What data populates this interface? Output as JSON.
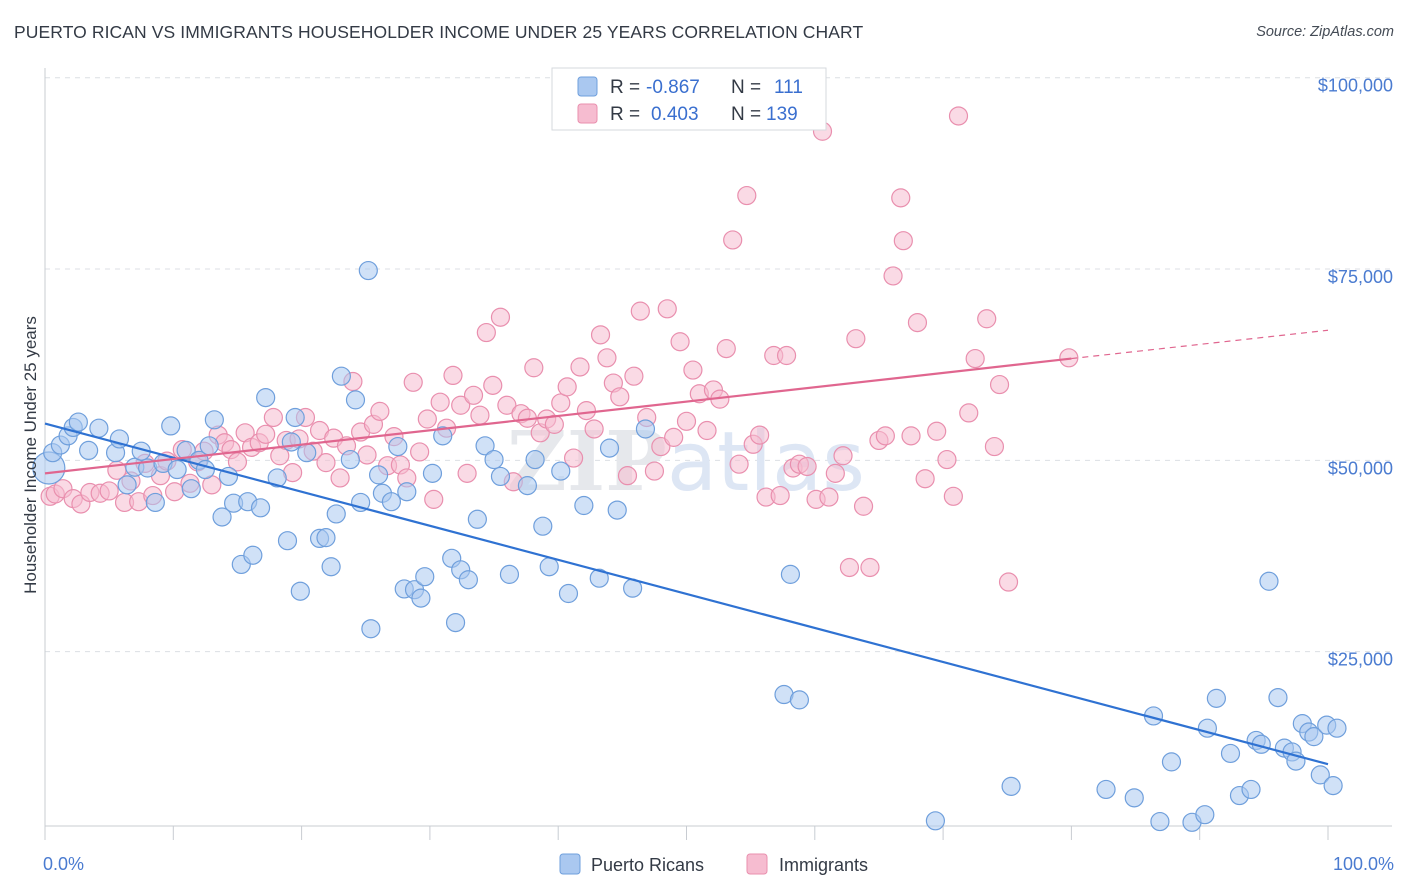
{
  "title": "PUERTO RICAN VS IMMIGRANTS HOUSEHOLDER INCOME UNDER 25 YEARS CORRELATION CHART",
  "source": "Source: ZipAtlas.com",
  "watermark": "ZIPatlas",
  "colors": {
    "blue_fill": "#aac8f0",
    "blue_stroke": "#6f9fdc",
    "blue_line": "#2f72d2",
    "pink_fill": "#f6bcd0",
    "pink_stroke": "#e98fae",
    "pink_line": "#e0668f",
    "tick": "#4a7bd0",
    "grid": "#dcdfe4"
  },
  "legend_top": {
    "rows": [
      {
        "r_label": "R =",
        "r_value": "-0.867",
        "n_label": "N =",
        "n_value": "111",
        "series": "blue"
      },
      {
        "r_label": "R =",
        "r_value": "0.403",
        "n_label": "N =",
        "n_value": "139",
        "series": "pink"
      }
    ]
  },
  "legend_bottom": [
    {
      "label": "Puerto Ricans",
      "series": "blue"
    },
    {
      "label": "Immigrants",
      "series": "pink"
    }
  ],
  "chart_data": {
    "type": "scatter",
    "title": "PUERTO RICAN VS IMMIGRANTS HOUSEHOLDER INCOME UNDER 25 YEARS CORRELATION CHART",
    "xlabel": "",
    "ylabel": "Householder Income Under 25 years",
    "xlim": [
      0,
      100
    ],
    "ylim": [
      0,
      105000
    ],
    "x_tick_labels": [
      "0.0%",
      "100.0%"
    ],
    "y_ticks": [
      25000,
      50000,
      75000,
      100000
    ],
    "y_tick_labels": [
      "$25,000",
      "$50,000",
      "$75,000",
      "$100,000"
    ],
    "grid": true,
    "series": [
      {
        "name": "Puerto Ricans",
        "color": "blue",
        "trend": {
          "x": [
            0,
            100
          ],
          "y": [
            54800,
            10300
          ],
          "dashed_from": null
        },
        "points": [
          [
            0.3,
            49000
          ],
          [
            0.6,
            51000
          ],
          [
            1.2,
            52000
          ],
          [
            1.8,
            53200
          ],
          [
            2.2,
            54300
          ],
          [
            2.6,
            55000
          ],
          [
            3.4,
            51300
          ],
          [
            4.2,
            54200
          ],
          [
            5.5,
            51000
          ],
          [
            5.8,
            52800
          ],
          [
            6.4,
            46800
          ],
          [
            7.0,
            49100
          ],
          [
            7.5,
            51200
          ],
          [
            8.0,
            49000
          ],
          [
            8.6,
            44500
          ],
          [
            9.2,
            49600
          ],
          [
            9.8,
            54500
          ],
          [
            10.3,
            48800
          ],
          [
            11.0,
            51300
          ],
          [
            11.4,
            46300
          ],
          [
            12.0,
            50000
          ],
          [
            12.5,
            48800
          ],
          [
            12.8,
            51900
          ],
          [
            13.2,
            55300
          ],
          [
            13.8,
            42600
          ],
          [
            14.3,
            47900
          ],
          [
            14.7,
            44400
          ],
          [
            15.3,
            36400
          ],
          [
            15.8,
            44600
          ],
          [
            16.2,
            37600
          ],
          [
            16.8,
            43800
          ],
          [
            17.2,
            58200
          ],
          [
            18.1,
            47700
          ],
          [
            18.9,
            39500
          ],
          [
            19.2,
            52400
          ],
          [
            19.5,
            55600
          ],
          [
            19.9,
            32900
          ],
          [
            20.4,
            51000
          ],
          [
            21.4,
            39800
          ],
          [
            21.9,
            39900
          ],
          [
            22.3,
            36100
          ],
          [
            22.7,
            43000
          ],
          [
            23.1,
            61000
          ],
          [
            23.8,
            50100
          ],
          [
            24.2,
            57900
          ],
          [
            24.6,
            44500
          ],
          [
            25.2,
            74800
          ],
          [
            25.4,
            28000
          ],
          [
            26.0,
            48100
          ],
          [
            26.3,
            45700
          ],
          [
            27.0,
            44600
          ],
          [
            27.5,
            51800
          ],
          [
            28.0,
            33200
          ],
          [
            28.2,
            45900
          ],
          [
            28.8,
            33100
          ],
          [
            29.3,
            32000
          ],
          [
            29.6,
            34800
          ],
          [
            30.2,
            48300
          ],
          [
            31.0,
            53200
          ],
          [
            31.7,
            37200
          ],
          [
            32.0,
            28800
          ],
          [
            32.4,
            35700
          ],
          [
            33.0,
            34400
          ],
          [
            33.7,
            42300
          ],
          [
            34.3,
            51900
          ],
          [
            35.0,
            50100
          ],
          [
            35.5,
            47900
          ],
          [
            36.2,
            35100
          ],
          [
            37.6,
            46700
          ],
          [
            38.2,
            50100
          ],
          [
            38.8,
            41400
          ],
          [
            39.3,
            36100
          ],
          [
            40.2,
            48600
          ],
          [
            40.8,
            32600
          ],
          [
            42.0,
            44100
          ],
          [
            43.2,
            34600
          ],
          [
            44.0,
            51600
          ],
          [
            44.6,
            43500
          ],
          [
            45.8,
            33300
          ],
          [
            46.8,
            54100
          ],
          [
            57.6,
            19400
          ],
          [
            58.1,
            35100
          ],
          [
            58.8,
            18700
          ],
          [
            69.4,
            2900
          ],
          [
            75.3,
            7400
          ],
          [
            82.7,
            7000
          ],
          [
            84.9,
            5900
          ],
          [
            86.4,
            16600
          ],
          [
            86.9,
            2800
          ],
          [
            87.8,
            10600
          ],
          [
            89.4,
            2700
          ],
          [
            90.4,
            3700
          ],
          [
            90.6,
            15000
          ],
          [
            91.3,
            18900
          ],
          [
            92.4,
            11700
          ],
          [
            93.1,
            6200
          ],
          [
            94.0,
            7000
          ],
          [
            94.4,
            13400
          ],
          [
            94.8,
            12900
          ],
          [
            95.4,
            34200
          ],
          [
            96.1,
            19000
          ],
          [
            96.6,
            12400
          ],
          [
            97.2,
            11900
          ],
          [
            97.5,
            10700
          ],
          [
            98.0,
            15600
          ],
          [
            98.5,
            14500
          ],
          [
            98.9,
            13900
          ],
          [
            99.4,
            8900
          ],
          [
            99.9,
            15400
          ],
          [
            100.4,
            7500
          ],
          [
            100.7,
            15000
          ]
        ]
      },
      {
        "name": "Immigrants",
        "color": "pink",
        "trend": {
          "x": [
            0,
            80
          ],
          "y": [
            48300,
            63300
          ],
          "dashed_to": [
            100,
            67000
          ]
        },
        "points": [
          [
            0.4,
            45300
          ],
          [
            0.8,
            45600
          ],
          [
            1.4,
            46300
          ],
          [
            2.2,
            45000
          ],
          [
            2.8,
            44300
          ],
          [
            3.5,
            45800
          ],
          [
            4.3,
            45700
          ],
          [
            5.0,
            46000
          ],
          [
            5.6,
            48700
          ],
          [
            6.2,
            44500
          ],
          [
            6.7,
            47300
          ],
          [
            7.3,
            44600
          ],
          [
            7.8,
            49600
          ],
          [
            8.4,
            45400
          ],
          [
            9.0,
            48000
          ],
          [
            9.5,
            49900
          ],
          [
            10.1,
            45900
          ],
          [
            10.7,
            51400
          ],
          [
            11.3,
            47000
          ],
          [
            11.9,
            49800
          ],
          [
            12.4,
            51200
          ],
          [
            13.0,
            46800
          ],
          [
            13.5,
            53300
          ],
          [
            14.0,
            52300
          ],
          [
            14.5,
            51400
          ],
          [
            15.0,
            49800
          ],
          [
            15.6,
            53600
          ],
          [
            16.1,
            51700
          ],
          [
            16.7,
            52300
          ],
          [
            17.2,
            53400
          ],
          [
            17.8,
            55600
          ],
          [
            18.3,
            50600
          ],
          [
            18.8,
            52600
          ],
          [
            19.3,
            48400
          ],
          [
            19.8,
            52800
          ],
          [
            20.3,
            55600
          ],
          [
            20.9,
            51200
          ],
          [
            21.4,
            53900
          ],
          [
            21.9,
            49700
          ],
          [
            22.5,
            52900
          ],
          [
            23.0,
            47700
          ],
          [
            23.5,
            51900
          ],
          [
            24.0,
            60300
          ],
          [
            24.6,
            53700
          ],
          [
            25.1,
            50700
          ],
          [
            25.6,
            54700
          ],
          [
            26.1,
            56400
          ],
          [
            26.7,
            49300
          ],
          [
            27.2,
            53100
          ],
          [
            27.7,
            49400
          ],
          [
            28.2,
            47700
          ],
          [
            28.7,
            60200
          ],
          [
            29.2,
            51100
          ],
          [
            29.8,
            55400
          ],
          [
            30.3,
            44900
          ],
          [
            30.8,
            57600
          ],
          [
            31.3,
            54200
          ],
          [
            31.8,
            61100
          ],
          [
            32.4,
            57200
          ],
          [
            32.9,
            48300
          ],
          [
            33.4,
            58500
          ],
          [
            33.9,
            55900
          ],
          [
            34.4,
            66700
          ],
          [
            34.9,
            59800
          ],
          [
            35.5,
            68700
          ],
          [
            36.0,
            57200
          ],
          [
            36.5,
            47200
          ],
          [
            37.1,
            56100
          ],
          [
            37.6,
            55500
          ],
          [
            38.1,
            62100
          ],
          [
            38.6,
            53600
          ],
          [
            39.1,
            55400
          ],
          [
            39.7,
            54700
          ],
          [
            40.2,
            57500
          ],
          [
            40.7,
            59600
          ],
          [
            41.2,
            50300
          ],
          [
            41.7,
            62200
          ],
          [
            42.2,
            56500
          ],
          [
            42.8,
            54100
          ],
          [
            43.3,
            66400
          ],
          [
            43.8,
            63400
          ],
          [
            44.3,
            60100
          ],
          [
            44.8,
            58300
          ],
          [
            45.4,
            48000
          ],
          [
            45.9,
            61000
          ],
          [
            46.4,
            69500
          ],
          [
            46.9,
            55600
          ],
          [
            47.5,
            48600
          ],
          [
            48.0,
            51800
          ],
          [
            48.5,
            69800
          ],
          [
            49.0,
            53000
          ],
          [
            49.5,
            65500
          ],
          [
            50.0,
            55100
          ],
          [
            50.5,
            61800
          ],
          [
            51.0,
            58700
          ],
          [
            51.6,
            53900
          ],
          [
            52.1,
            59200
          ],
          [
            52.6,
            58000
          ],
          [
            53.1,
            64600
          ],
          [
            53.6,
            78800
          ],
          [
            54.1,
            49500
          ],
          [
            54.7,
            84600
          ],
          [
            55.2,
            52100
          ],
          [
            55.7,
            53300
          ],
          [
            56.2,
            45200
          ],
          [
            56.8,
            63700
          ],
          [
            57.3,
            45400
          ],
          [
            57.8,
            63700
          ],
          [
            58.3,
            49000
          ],
          [
            58.8,
            49500
          ],
          [
            59.4,
            49200
          ],
          [
            60.1,
            44900
          ],
          [
            60.6,
            93000
          ],
          [
            61.1,
            45200
          ],
          [
            61.6,
            48300
          ],
          [
            62.2,
            50600
          ],
          [
            62.7,
            36000
          ],
          [
            63.2,
            65900
          ],
          [
            63.8,
            44000
          ],
          [
            64.3,
            36000
          ],
          [
            65.0,
            52600
          ],
          [
            65.5,
            53200
          ],
          [
            66.1,
            74100
          ],
          [
            66.7,
            84300
          ],
          [
            66.9,
            78700
          ],
          [
            67.5,
            53200
          ],
          [
            68.0,
            68000
          ],
          [
            68.6,
            47600
          ],
          [
            69.5,
            53800
          ],
          [
            70.3,
            50100
          ],
          [
            70.8,
            45300
          ],
          [
            71.2,
            95000
          ],
          [
            72.0,
            56200
          ],
          [
            72.5,
            63300
          ],
          [
            73.4,
            68500
          ],
          [
            74.0,
            51800
          ],
          [
            74.4,
            59900
          ],
          [
            75.1,
            34100
          ],
          [
            79.8,
            63400
          ]
        ]
      }
    ]
  }
}
